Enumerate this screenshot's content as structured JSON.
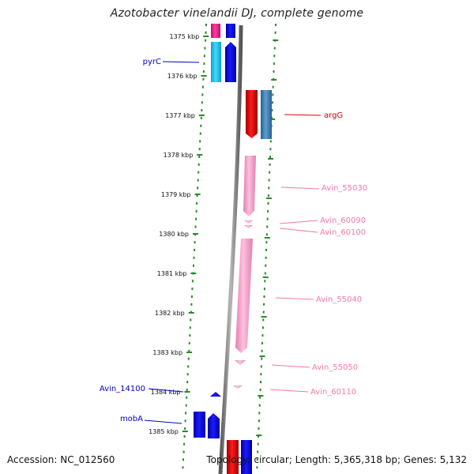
{
  "title": "Azotobacter vinelandii DJ, complete genome",
  "accession": "Accession: NC_012560",
  "topology": "Topology: circular; Length: 5,365,318 bp; Genes: 5,132",
  "ticks": [
    "1375 kbp",
    "1376 kbp",
    "1377 kbp",
    "1378 kbp",
    "1379 kbp",
    "1380 kbp",
    "1381 kbp",
    "1382 kbp",
    "1383 kbp",
    "1384 kbp",
    "1385 kbp"
  ],
  "colors": {
    "blue": "#0000dd",
    "cyan": "#22c4f0",
    "magenta": "#f02090",
    "red": "#e00000",
    "steel": "#3a7fb8",
    "pink": "#f5a0c8",
    "pink_text": "#f07aa8",
    "green": "#2a8a2a",
    "backbone": "#888888"
  },
  "gene_labels": [
    {
      "text": "pyrC",
      "color": "#0000cc"
    },
    {
      "text": "argG",
      "color": "#dd0000"
    },
    {
      "text": "Avin_55030",
      "color": "#f07aa8"
    },
    {
      "text": "Avin_60090",
      "color": "#f07aa8"
    },
    {
      "text": "Avin_60100",
      "color": "#f07aa8"
    },
    {
      "text": "Avin_55040",
      "color": "#f07aa8"
    },
    {
      "text": "Avin_55050",
      "color": "#f07aa8"
    },
    {
      "text": "Avin_60110",
      "color": "#f07aa8"
    },
    {
      "text": "Avin_14100",
      "color": "#0000cc"
    },
    {
      "text": "mobA",
      "color": "#0000cc"
    }
  ]
}
